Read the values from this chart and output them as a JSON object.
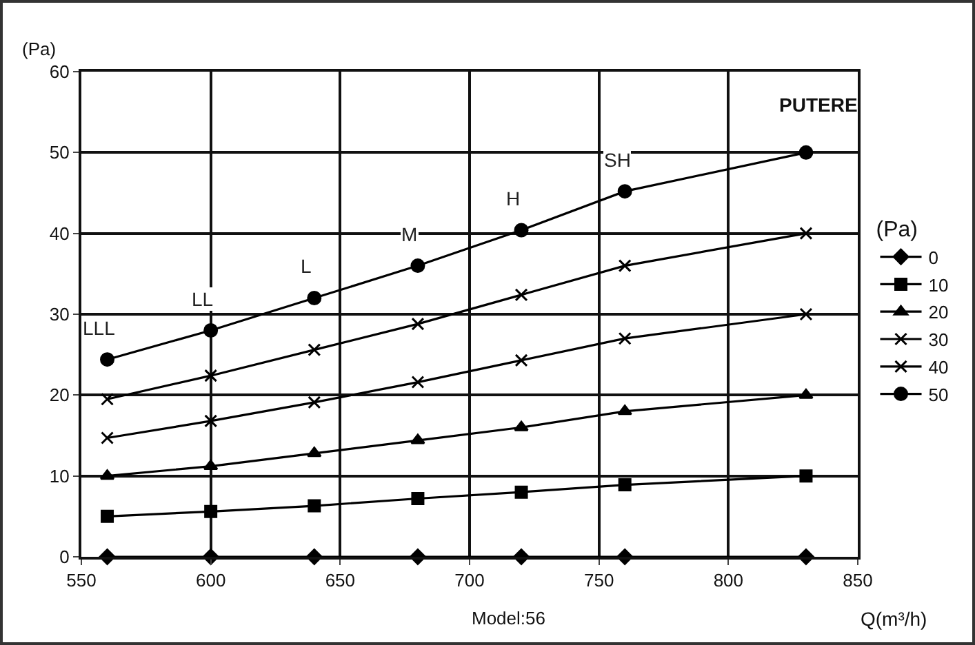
{
  "chart_data": {
    "type": "line",
    "xlabel": "Q(m³/h)",
    "ylabel": "(Pa)",
    "legend_title": "(Pa)",
    "x": [
      560,
      600,
      640,
      680,
      720,
      760,
      830
    ],
    "xlim": [
      550,
      850
    ],
    "xticks": [
      550,
      600,
      650,
      700,
      750,
      800,
      850
    ],
    "ylim": [
      0,
      60
    ],
    "yticks": [
      0,
      10,
      20,
      30,
      40,
      50,
      60
    ],
    "grid": true,
    "legend": "right",
    "line_style": "solid",
    "series": [
      {
        "name": "0",
        "color": "#000000",
        "marker": "diamond",
        "values": [
          0,
          0,
          0,
          0,
          0,
          0,
          0
        ]
      },
      {
        "name": "10",
        "color": "#000000",
        "marker": "square",
        "values": [
          5,
          5.6,
          6.3,
          7.2,
          8,
          8.9,
          10
        ]
      },
      {
        "name": "20",
        "color": "#000000",
        "marker": "triangle",
        "values": [
          10,
          11.2,
          12.8,
          14.4,
          16,
          18,
          20
        ]
      },
      {
        "name": "30",
        "color": "#000000",
        "marker": "cross",
        "values": [
          14.7,
          16.8,
          19.1,
          21.6,
          24.3,
          27,
          30
        ]
      },
      {
        "name": "40",
        "color": "#000000",
        "marker": "cross",
        "values": [
          19.5,
          22.4,
          25.6,
          28.8,
          32.4,
          36,
          40
        ]
      },
      {
        "name": "50",
        "color": "#000000",
        "marker": "circle",
        "values": [
          24.4,
          28,
          32,
          36,
          40.4,
          45.2,
          50
        ]
      }
    ],
    "annotations": [
      {
        "text": "LLL",
        "x": 560,
        "y": 24.4
      },
      {
        "text": "LL",
        "x": 600,
        "y": 28
      },
      {
        "text": "L",
        "x": 640,
        "y": 32
      },
      {
        "text": "M",
        "x": 680,
        "y": 36
      },
      {
        "text": "H",
        "x": 720,
        "y": 40.4
      },
      {
        "text": "SH",
        "x": 760,
        "y": 45.2
      },
      "PUTERE",
      "Model:56"
    ]
  }
}
